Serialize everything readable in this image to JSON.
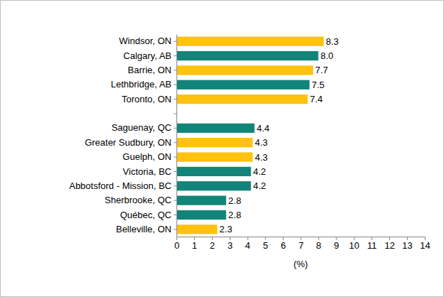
{
  "chart_data": {
    "type": "bar",
    "orientation": "horizontal",
    "categories": [
      "Windsor, ON",
      "Calgary, AB",
      "Barrie, ON",
      "Lethbridge, AB",
      "Toronto, ON",
      null,
      "Saguenay, QC",
      "Greater Sudbury, ON",
      "Guelph, ON",
      "Victoria, BC",
      "Abbotsford - Mission, BC",
      "Sherbrooke, QC",
      "Québec, QC",
      "Belleville, ON"
    ],
    "values": [
      8.3,
      8.0,
      7.7,
      7.5,
      7.4,
      null,
      4.4,
      4.3,
      4.3,
      4.2,
      4.2,
      2.8,
      2.8,
      2.3
    ],
    "value_labels": [
      "8.3",
      "8.0",
      "7.7",
      "7.5",
      "7.4",
      null,
      "4.4",
      "4.3",
      "4.3",
      "4.2",
      "4.2",
      "2.8",
      "2.8",
      "2.3"
    ],
    "colors": [
      "#ffc20e",
      "#13847a",
      "#ffc20e",
      "#13847a",
      "#ffc20e",
      null,
      "#13847a",
      "#ffc20e",
      "#ffc20e",
      "#13847a",
      "#13847a",
      "#13847a",
      "#13847a",
      "#ffc20e"
    ],
    "xlabel": "(%)",
    "xlim": [
      0,
      14
    ],
    "xticks": [
      0,
      1,
      2,
      3,
      4,
      5,
      6,
      7,
      8,
      9,
      10,
      11,
      12,
      13,
      14
    ],
    "grid": false,
    "data_labels": true
  }
}
